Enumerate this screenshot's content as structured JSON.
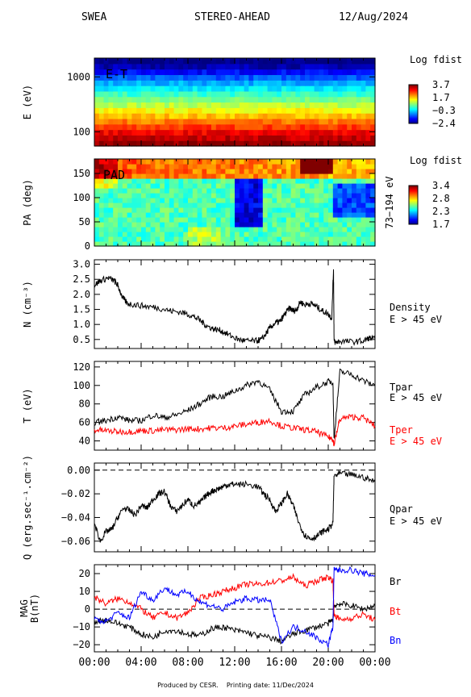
{
  "header": {
    "instrument": "SWEA",
    "spacecraft": "STEREO-AHEAD",
    "date": "12/Aug/2024"
  },
  "footer": {
    "produced_by": "Produced by CESR.",
    "printing_date": "Printing date: 11/Dec/2024"
  },
  "time_ticks": [
    "00:00",
    "04:00",
    "08:00",
    "12:00",
    "16:00",
    "20:00",
    "00:00"
  ],
  "colors": {
    "black": "#000000",
    "red": "#ff0000",
    "blue": "#0000ff"
  },
  "chart_data": [
    {
      "type": "heatmap",
      "id": "et",
      "inner_label": "E-T",
      "ylabel": "E (eV)",
      "yscale": "log",
      "ytick_labels": [
        "1000",
        "100"
      ],
      "colorbar": {
        "title": "Log fdist",
        "ticks": [
          "3.7",
          "1.7",
          "−0.3",
          "−2.4"
        ]
      },
      "rows_energy_eV": [
        60,
        75,
        95,
        120,
        150,
        190,
        240,
        300,
        380,
        480,
        600,
        760,
        960,
        1200,
        1500,
        1900
      ],
      "row_level": [
        3.6,
        3.3,
        3.0,
        2.6,
        2.2,
        1.8,
        1.4,
        1.0,
        0.6,
        0.2,
        -0.2,
        -0.6,
        -1.1,
        -1.6,
        -2.1,
        -2.4
      ]
    },
    {
      "type": "heatmap",
      "id": "pad",
      "inner_label": "PAD",
      "ylabel": "PA (deg)",
      "right_label": "73−194 eV",
      "ytick_labels": [
        "150",
        "100",
        "50",
        "0"
      ],
      "ylim": [
        0,
        180
      ],
      "colorbar": {
        "title": "Log fdist",
        "ticks": [
          "3.4",
          "2.8",
          "2.3",
          "1.7"
        ]
      }
    },
    {
      "type": "line",
      "id": "density",
      "ylabel": "N (cm⁻³)",
      "ylim": [
        0.2,
        3.15
      ],
      "ytick_labels": [
        "3.0",
        "2.5",
        "2.0",
        "1.5",
        "1.0",
        "0.5"
      ],
      "series": [
        {
          "name": "Density",
          "sub": "E > 45 eV",
          "color": "#000000",
          "x": [
            0,
            0.5,
            1.2,
            1.7,
            2.0,
            2.4,
            2.8,
            3.5,
            4.5,
            5.5,
            6.5,
            7.5,
            8.3,
            9.0,
            9.6,
            10.2,
            10.8,
            11.5,
            12.3,
            13.0,
            13.8,
            14.3,
            14.7,
            15.0,
            15.5,
            15.9,
            16.3,
            16.7,
            17.0,
            17.3,
            17.6,
            18.0,
            18.5,
            19.0,
            19.5,
            20.0,
            20.3,
            20.45,
            20.5,
            20.6,
            21.0,
            22.0,
            23.0,
            23.5,
            24
          ],
          "y": [
            2.3,
            2.45,
            2.55,
            2.45,
            2.3,
            1.9,
            1.7,
            1.65,
            1.6,
            1.55,
            1.45,
            1.4,
            1.3,
            1.15,
            0.95,
            0.85,
            0.8,
            0.65,
            0.5,
            0.45,
            0.45,
            0.5,
            0.7,
            0.9,
            1.05,
            1.1,
            1.35,
            1.55,
            1.45,
            1.5,
            1.75,
            1.65,
            1.7,
            1.6,
            1.45,
            1.35,
            1.2,
            2.85,
            0.45,
            0.4,
            0.45,
            0.42,
            0.45,
            0.55,
            0.5
          ]
        }
      ]
    },
    {
      "type": "line",
      "id": "temperature",
      "ylabel": "T (eV)",
      "ylim": [
        30,
        126
      ],
      "ytick_labels": [
        "120",
        "100",
        "80",
        "60",
        "40"
      ],
      "series": [
        {
          "name": "Tpar",
          "sub": "E > 45 eV",
          "color": "#000000",
          "x": [
            0,
            1,
            2,
            3,
            4,
            5,
            6,
            7,
            8,
            9,
            10,
            11,
            12,
            13,
            14,
            15,
            16,
            17,
            18,
            19,
            20,
            20.4,
            20.5,
            21,
            22,
            23,
            24
          ],
          "y": [
            60,
            62,
            66,
            62,
            62,
            68,
            65,
            68,
            73,
            80,
            88,
            88,
            94,
            100,
            105,
            95,
            72,
            72,
            90,
            98,
            104,
            104,
            42,
            115,
            112,
            105,
            100
          ]
        },
        {
          "name": "Tper",
          "sub": "E > 45 eV",
          "color": "#ff0000",
          "x": [
            0,
            1,
            2,
            3,
            4,
            5,
            6,
            7,
            8,
            9,
            10,
            11,
            12,
            13,
            14,
            15,
            16,
            17,
            18,
            19,
            20,
            20.4,
            20.5,
            21,
            22,
            23,
            24
          ],
          "y": [
            52,
            51,
            50,
            50,
            51,
            51,
            52,
            52,
            53,
            53,
            54,
            54,
            56,
            58,
            60,
            62,
            56,
            54,
            52,
            50,
            44,
            42,
            36,
            64,
            66,
            65,
            56
          ]
        }
      ]
    },
    {
      "type": "line",
      "id": "heatflux",
      "ylabel": "Q (erg.sec⁻¹.cm⁻²)",
      "ylim": [
        -0.069,
        0.006
      ],
      "ytick_labels": [
        "0.00",
        "−0.02",
        "−0.04",
        "−0.06"
      ],
      "series": [
        {
          "name": "Qpar",
          "sub": "E > 45 eV",
          "color": "#000000",
          "x": [
            0,
            0.5,
            1,
            1.5,
            2,
            2.5,
            3,
            3.5,
            4,
            4.5,
            5,
            5.5,
            6,
            6.5,
            7,
            7.5,
            8,
            8.5,
            9,
            9.5,
            10,
            10.5,
            11,
            11.5,
            12,
            13,
            14,
            14.5,
            15,
            15.5,
            16,
            16.5,
            17,
            17.5,
            18,
            18.5,
            19,
            19.5,
            20,
            20.4,
            20.5,
            21,
            22,
            23,
            24
          ],
          "y": [
            -0.045,
            -0.06,
            -0.052,
            -0.05,
            -0.04,
            -0.032,
            -0.034,
            -0.038,
            -0.03,
            -0.032,
            -0.025,
            -0.02,
            -0.018,
            -0.03,
            -0.035,
            -0.03,
            -0.025,
            -0.03,
            -0.028,
            -0.022,
            -0.018,
            -0.016,
            -0.014,
            -0.012,
            -0.012,
            -0.012,
            -0.014,
            -0.02,
            -0.025,
            -0.035,
            -0.028,
            -0.02,
            -0.03,
            -0.045,
            -0.055,
            -0.058,
            -0.056,
            -0.052,
            -0.05,
            -0.045,
            -0.005,
            -0.003,
            -0.004,
            -0.006,
            -0.01
          ]
        }
      ]
    },
    {
      "type": "line",
      "id": "mag",
      "ylabel": "MAG B(nT)",
      "ylim": [
        -24,
        25
      ],
      "ytick_labels": [
        "20",
        "10",
        "0",
        "−10",
        "−20"
      ],
      "dashed_zero": true,
      "series": [
        {
          "name": "Br",
          "color": "#000000",
          "x": [
            0,
            1,
            2,
            3,
            4,
            5,
            6,
            7,
            8,
            9,
            10,
            11,
            12,
            13,
            14,
            15,
            16,
            17,
            18,
            19,
            20,
            20.4,
            20.5,
            21,
            22,
            23,
            24
          ],
          "y": [
            -7,
            -6,
            -8,
            -10,
            -14,
            -16,
            -12,
            -12,
            -14,
            -15,
            -11,
            -10,
            -12,
            -13,
            -15,
            -16,
            -18,
            -14,
            -12,
            -10,
            -8,
            -6,
            2,
            3,
            2,
            0,
            2
          ]
        },
        {
          "name": "Bt",
          "color": "#ff0000",
          "x": [
            0,
            1,
            2,
            3,
            4,
            5,
            6,
            7,
            8,
            9,
            10,
            11,
            12,
            13,
            14,
            15,
            16,
            17,
            18,
            19,
            20,
            20.4,
            20.5,
            21,
            22,
            23,
            24
          ],
          "y": [
            7,
            3,
            6,
            4,
            0,
            -5,
            -2,
            -5,
            -2,
            6,
            8,
            10,
            12,
            14,
            14,
            15,
            16,
            18,
            13,
            16,
            18,
            16,
            -3,
            -6,
            -5,
            -3,
            -6
          ]
        },
        {
          "name": "Bn",
          "color": "#0000ff",
          "x": [
            0,
            1,
            2,
            3,
            4,
            5,
            6,
            7,
            8,
            9,
            10,
            11,
            12,
            13,
            14,
            15,
            16,
            17,
            18,
            19,
            20,
            20.4,
            20.5,
            21,
            22,
            23,
            24
          ],
          "y": [
            -6,
            -7,
            -2,
            -5,
            10,
            5,
            12,
            8,
            10,
            4,
            2,
            0,
            4,
            6,
            5,
            5,
            -18,
            -10,
            -12,
            -16,
            -20,
            -10,
            22,
            22,
            22,
            20,
            19
          ]
        }
      ]
    }
  ]
}
